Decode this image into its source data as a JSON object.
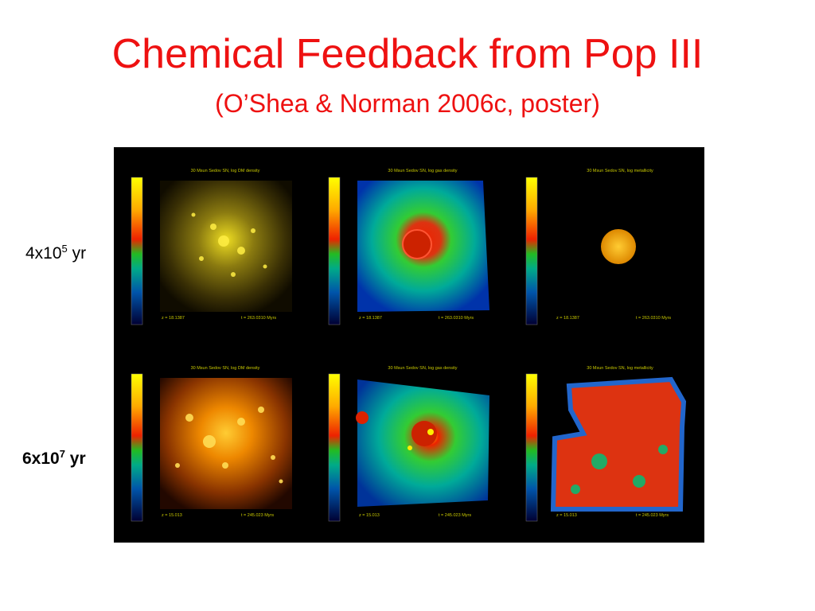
{
  "title": "Chemical Feedback from Pop III",
  "subtitle": "(O’Shea & Norman 2006c, poster)",
  "rows": [
    {
      "label_base": "4x10",
      "label_exp": "5",
      "label_unit": " yr"
    },
    {
      "label_base": "6x10",
      "label_exp": "7",
      "label_unit": " yr"
    }
  ],
  "panels": {
    "row1": {
      "titles": [
        "30 Msun Sedov SN, log DM density",
        "30 Msun Sedov SN, log gas density",
        "30 Msun Sedov SN, log metallicity"
      ],
      "z": "z = 18.1387",
      "t": "t = 263.0310 Myrs"
    },
    "row2": {
      "titles": [
        "30 Msun Sedov SN, log DM density",
        "30 Msun Sedov SN, log gas density",
        "30 Msun Sedov SN, log metallicity"
      ],
      "z": "z = 15.013",
      "t": "t = 245.023 Myrs"
    }
  },
  "colors": {
    "title": "#ee1111",
    "figure_background": "#000000",
    "caption_text": "#c8c800"
  }
}
